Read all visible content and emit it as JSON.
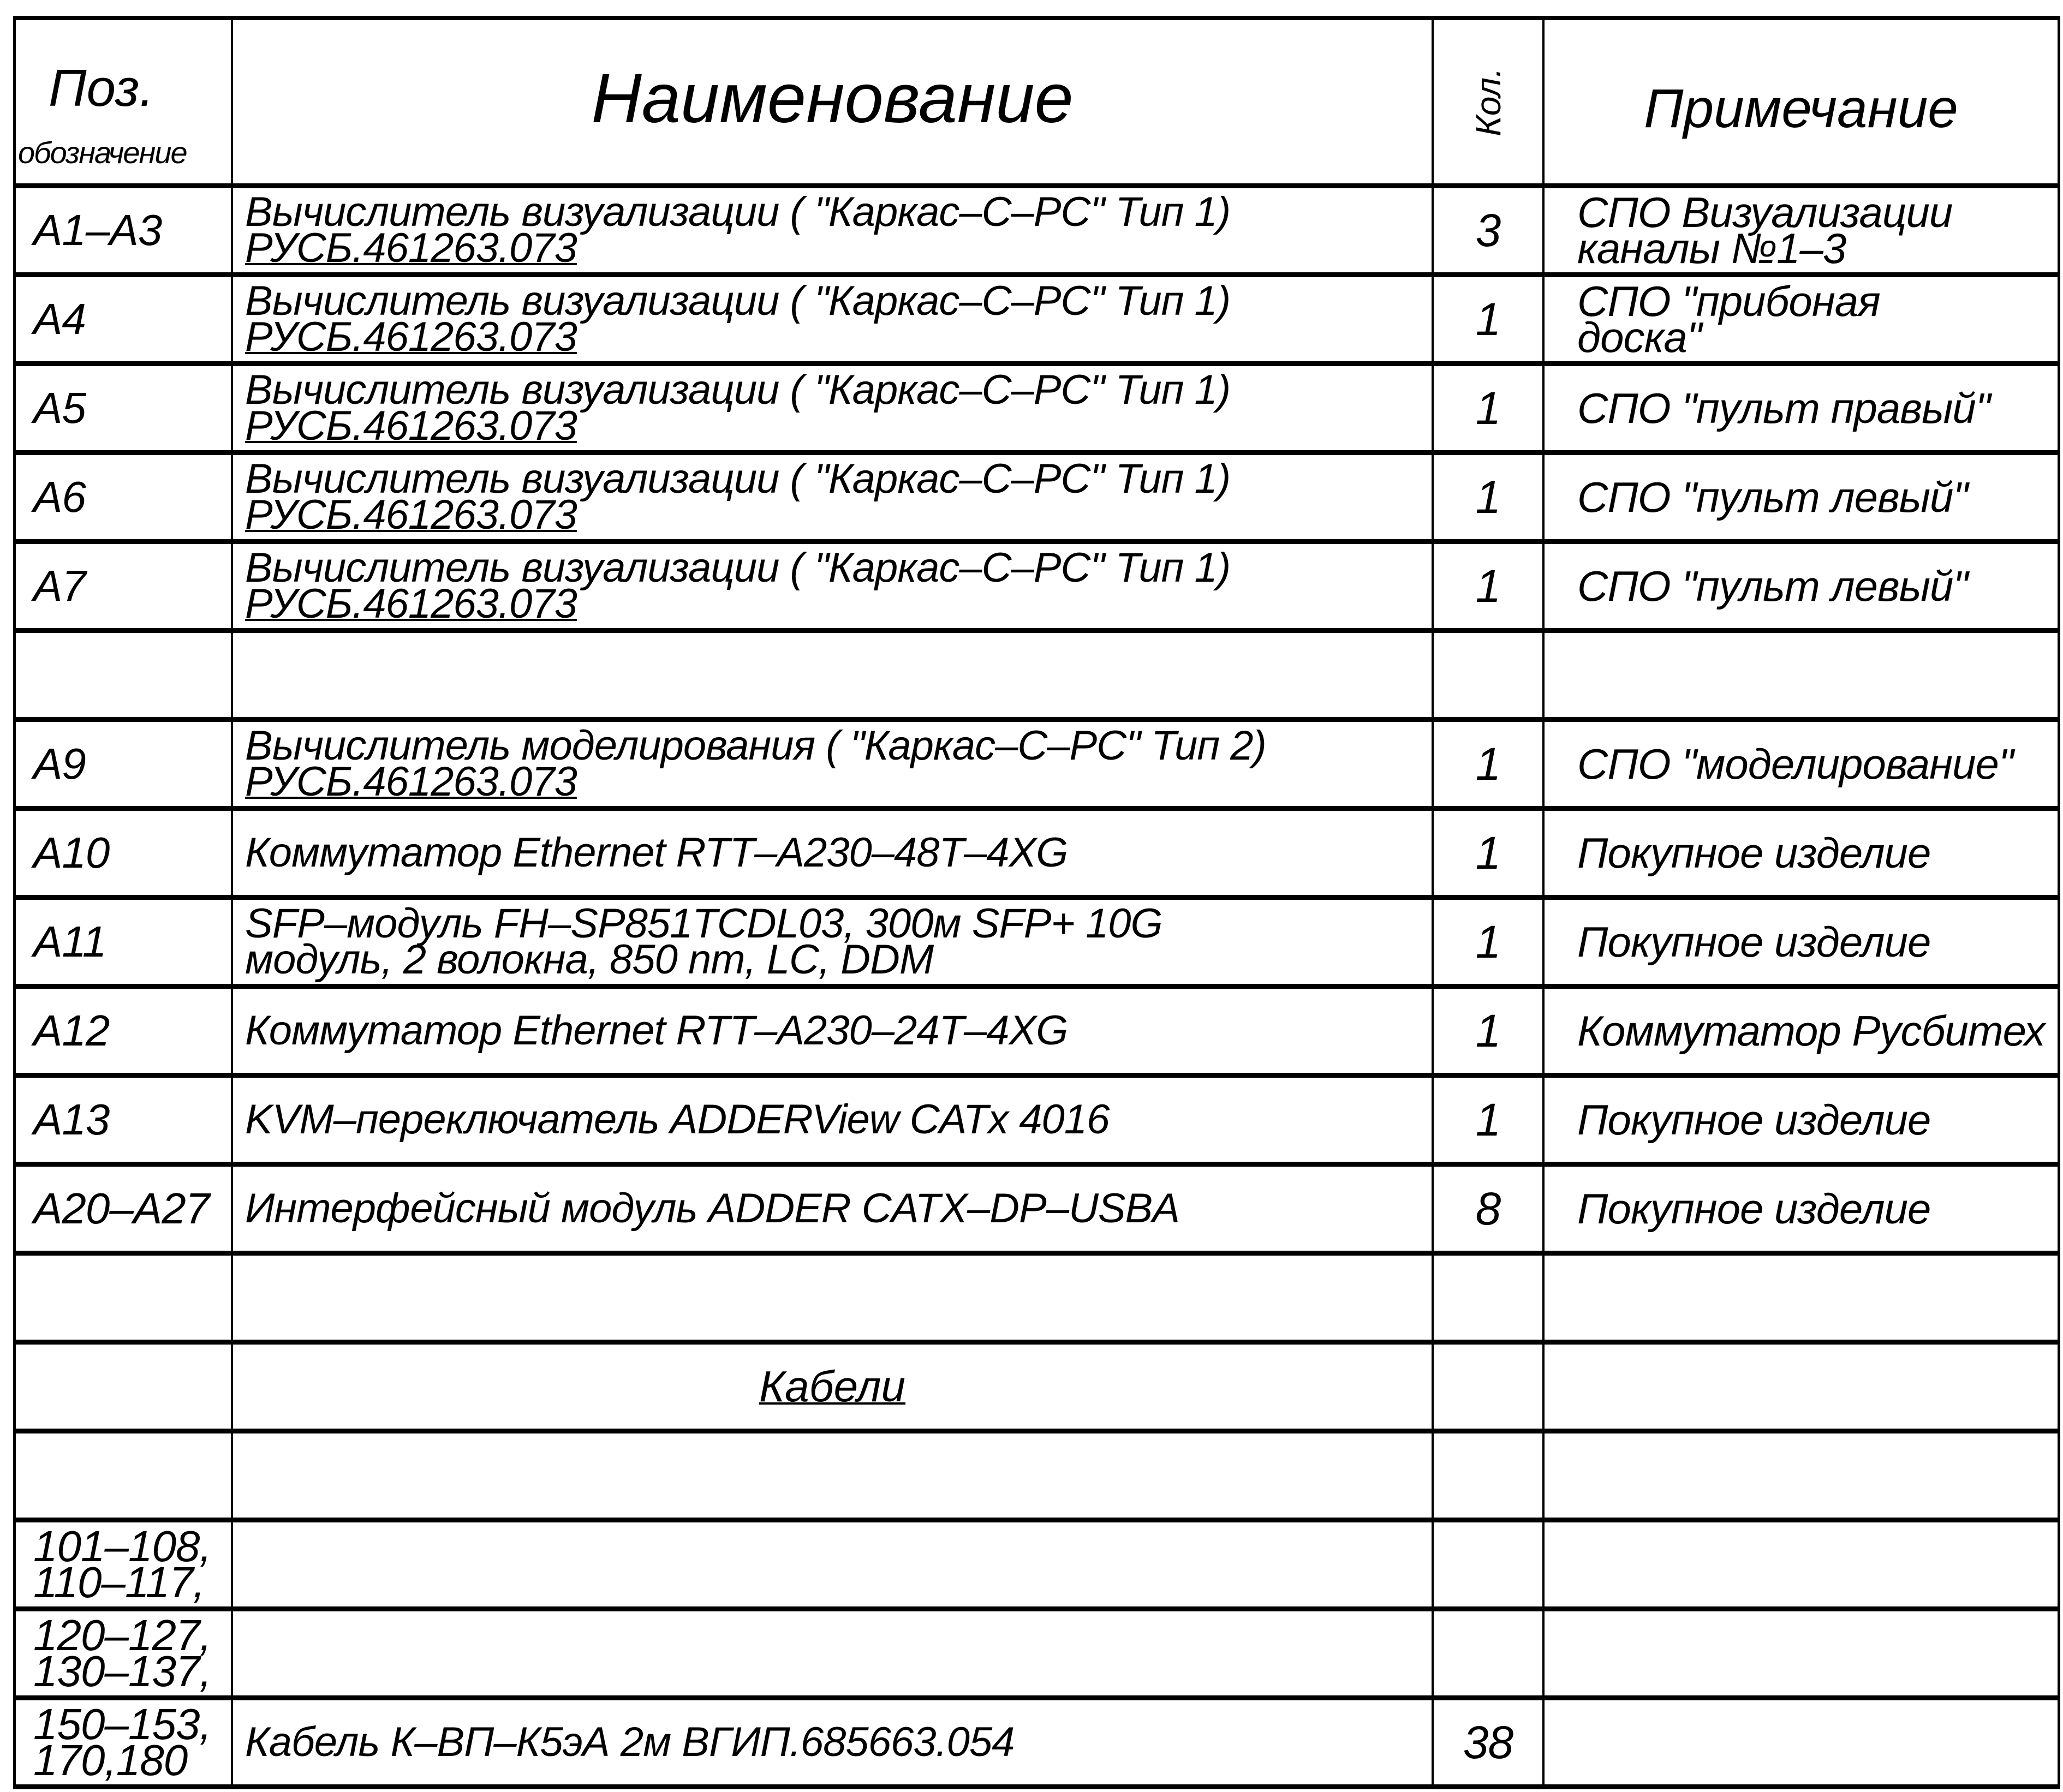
{
  "header": {
    "pos_line1": "Поз.",
    "pos_line2": "обозначение",
    "name": "Наименование",
    "qty": "Кол.",
    "note": "Примечание"
  },
  "rows": [
    {
      "pos": [
        "A1–A3"
      ],
      "name": [
        "Вычислитель визуализации ( \"Каркас–С–РС\" Тип 1)",
        "РУСБ.461263.073"
      ],
      "qty": "3",
      "note": [
        "СПО Визуализации",
        "каналы №1–3"
      ]
    },
    {
      "pos": [
        "A4"
      ],
      "name": [
        "Вычислитель визуализации ( \"Каркас–С–РС\" Тип 1)",
        "РУСБ.461263.073"
      ],
      "qty": "1",
      "note": [
        "СПО \"прибоная",
        "доска\""
      ]
    },
    {
      "pos": [
        "A5"
      ],
      "name": [
        "Вычислитель визуализации ( \"Каркас–С–РС\" Тип 1)",
        "РУСБ.461263.073"
      ],
      "qty": "1",
      "note": [
        "СПО \"пульт правый\""
      ]
    },
    {
      "pos": [
        "A6"
      ],
      "name": [
        "Вычислитель визуализации ( \"Каркас–С–РС\" Тип 1)",
        "РУСБ.461263.073"
      ],
      "qty": "1",
      "note": [
        "СПО \"пульт левый\""
      ]
    },
    {
      "pos": [
        "A7"
      ],
      "name": [
        "Вычислитель визуализации ( \"Каркас–С–РС\" Тип 1)",
        "РУСБ.461263.073"
      ],
      "qty": "1",
      "note": [
        "СПО \"пульт левый\""
      ]
    },
    {
      "pos": [],
      "name": [],
      "qty": "",
      "note": []
    },
    {
      "pos": [
        "A9"
      ],
      "name": [
        "Вычислитель моделирования ( \"Каркас–С–РС\" Тип 2)",
        "РУСБ.461263.073"
      ],
      "qty": "1",
      "note": [
        "СПО \"моделирование\""
      ]
    },
    {
      "pos": [
        "A10"
      ],
      "name": [
        "Коммутатор Ethernet RTT–A230–48T–4XG"
      ],
      "qty": "1",
      "note": [
        "Покупное изделие"
      ]
    },
    {
      "pos": [
        "A11"
      ],
      "name": [
        "SFP–модуль FH–SP851TCDL03, 300м SFP+ 10G",
        "модуль, 2 волокна, 850 nm, LC, DDM"
      ],
      "qty": "1",
      "note": [
        "Покупное изделие"
      ]
    },
    {
      "pos": [
        "A12"
      ],
      "name": [
        "Коммутатор Ethernet RTT–A230–24T–4XG"
      ],
      "qty": "1",
      "note": [
        "Коммутатор Русбитех"
      ]
    },
    {
      "pos": [
        "A13"
      ],
      "name": [
        "KVM–переключатель ADDERView CATx 4016"
      ],
      "qty": "1",
      "note": [
        "Покупное изделие"
      ]
    },
    {
      "pos": [
        "A20–A27"
      ],
      "name": [
        "Интерфейсный модуль ADDER CATX–DP–USBA"
      ],
      "qty": "8",
      "note": [
        "Покупное изделие"
      ]
    },
    {
      "pos": [],
      "name": [],
      "qty": "",
      "note": []
    },
    {
      "pos": [],
      "section": "Кабели",
      "name": [],
      "qty": "",
      "note": []
    },
    {
      "pos": [],
      "name": [],
      "qty": "",
      "note": []
    },
    {
      "pos": [
        "101–108,",
        "110–117,"
      ],
      "name": [],
      "qty": "",
      "note": []
    },
    {
      "pos": [
        "120–127,",
        "130–137,"
      ],
      "name": [],
      "qty": "",
      "note": []
    },
    {
      "pos": [
        "150–153,",
        "170,180"
      ],
      "name": [
        "Кабель К–ВП–К5эА 2м ВГИП.685663.054"
      ],
      "qty": "38",
      "note": []
    }
  ]
}
